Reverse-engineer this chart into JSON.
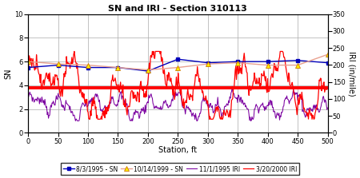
{
  "title": "SN and IRI - Section 310113",
  "xlabel": "Station, ft",
  "ylabel_left": "SN",
  "ylabel_right": "IRI (in/mile)",
  "xlim": [
    0,
    500
  ],
  "ylim_left": [
    0,
    10
  ],
  "ylim_right": [
    0,
    350
  ],
  "xticks": [
    0,
    50,
    100,
    150,
    200,
    250,
    300,
    350,
    400,
    450,
    500
  ],
  "yticks_left": [
    0,
    2,
    4,
    6,
    8,
    10
  ],
  "yticks_right": [
    0,
    50,
    100,
    150,
    200,
    250,
    300,
    350
  ],
  "sn_1995_x": [
    0,
    50,
    100,
    150,
    200,
    250,
    300,
    350,
    400,
    450,
    500
  ],
  "sn_1995_y": [
    5.5,
    5.7,
    5.5,
    5.5,
    5.2,
    6.2,
    5.9,
    6.0,
    6.0,
    6.1,
    5.9
  ],
  "sn_1999_x": [
    0,
    50,
    100,
    150,
    200,
    250,
    300,
    350,
    400,
    450,
    500
  ],
  "sn_1999_y": [
    6.0,
    5.8,
    5.7,
    5.5,
    5.3,
    5.5,
    5.8,
    5.9,
    5.7,
    5.7,
    6.6
  ],
  "sn_color_1995": "#0000BB",
  "sn_color_1999": "#FF8C00",
  "iri_color_1995": "#7B00A0",
  "iri_color_2000": "#FF0000",
  "avg_iri_line_sn_scale": 3.65,
  "legend_entries": [
    "8/3/1995 - SN",
    "10/14/1999 - SN",
    "11/1/1995 IRI",
    "3/20/2000 IRI"
  ],
  "fig_width": 4.5,
  "fig_height": 2.23,
  "dpi": 100
}
